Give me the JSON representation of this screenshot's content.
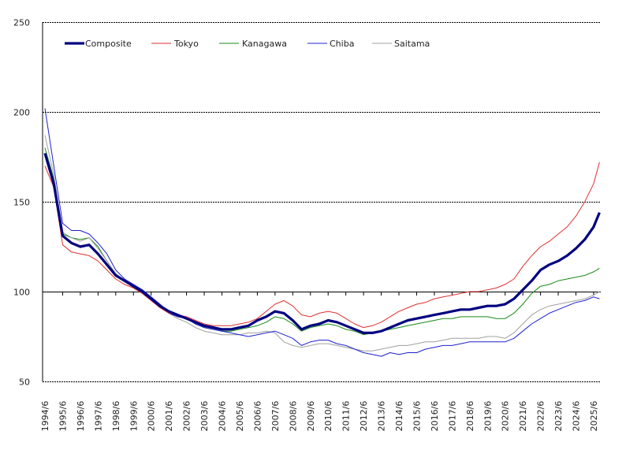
{
  "chart_data": {
    "type": "line",
    "title": "",
    "xlabel": "",
    "ylabel": "",
    "ylim": [
      50,
      250
    ],
    "yticks": [
      50,
      100,
      150,
      200,
      250
    ],
    "grid": "horizontal dashed at 150, 200, 250; solid axis line at 100",
    "legend_position": "top-left",
    "xtick_labels": [
      "1994/6",
      "1995/6",
      "1996/6",
      "1997/6",
      "1998/6",
      "1999/6",
      "2000/6",
      "2001/6",
      "2002/6",
      "2003/6",
      "2004/6",
      "2005/6",
      "2006/6",
      "2007/6",
      "2008/6",
      "2009/6",
      "2010/6",
      "2011/6",
      "2012/6",
      "2013/6",
      "2014/6",
      "2015/6",
      "2016/6",
      "2017/6",
      "2018/6",
      "2019/6",
      "2020/6",
      "2021/6",
      "2022/6",
      "2023/6",
      "2024/6",
      "2025/6"
    ],
    "x": [
      "1994/6",
      "1994/12",
      "1995/6",
      "1995/12",
      "1996/6",
      "1996/12",
      "1997/6",
      "1997/12",
      "1998/6",
      "1998/12",
      "1999/6",
      "1999/12",
      "2000/6",
      "2000/12",
      "2001/6",
      "2001/12",
      "2002/6",
      "2002/12",
      "2003/6",
      "2003/12",
      "2004/6",
      "2004/12",
      "2005/6",
      "2005/12",
      "2006/6",
      "2006/12",
      "2007/6",
      "2007/12",
      "2008/6",
      "2008/12",
      "2009/6",
      "2009/12",
      "2010/6",
      "2010/12",
      "2011/6",
      "2011/12",
      "2012/6",
      "2012/12",
      "2013/6",
      "2013/12",
      "2014/6",
      "2014/12",
      "2015/6",
      "2015/12",
      "2016/6",
      "2016/12",
      "2017/6",
      "2017/12",
      "2018/6",
      "2018/12",
      "2019/6",
      "2019/12",
      "2020/6",
      "2020/12",
      "2021/6",
      "2021/12",
      "2022/6",
      "2022/12",
      "2023/6",
      "2023/12",
      "2024/6",
      "2024/12",
      "2025/6",
      "2025/10"
    ],
    "series": [
      {
        "name": "Composite",
        "color": "#000080",
        "values": [
          177,
          160,
          131,
          127,
          125,
          126,
          121,
          115,
          109,
          106,
          103,
          100,
          96,
          92,
          89,
          87,
          85,
          83,
          81,
          80,
          79,
          79,
          80,
          81,
          84,
          86,
          89,
          88,
          84,
          79,
          81,
          82,
          84,
          83,
          81,
          79,
          77,
          77,
          78,
          80,
          82,
          84,
          85,
          86,
          87,
          88,
          89,
          90,
          90,
          91,
          92,
          92,
          93,
          96,
          101,
          106,
          112,
          115,
          117,
          120,
          124,
          129,
          136,
          144
        ]
      },
      {
        "name": "Tokyo",
        "color": "#e03030",
        "values": [
          170,
          158,
          126,
          122,
          121,
          120,
          117,
          112,
          107,
          104,
          102,
          99,
          95,
          91,
          88,
          87,
          86,
          84,
          82,
          81,
          81,
          81,
          82,
          83,
          85,
          89,
          93,
          95,
          92,
          87,
          86,
          88,
          89,
          88,
          85,
          82,
          80,
          81,
          83,
          86,
          89,
          91,
          93,
          94,
          96,
          97,
          98,
          99,
          100,
          100,
          101,
          102,
          104,
          107,
          114,
          120,
          125,
          128,
          132,
          136,
          142,
          150,
          160,
          172
        ]
      },
      {
        "name": "Kanagawa",
        "color": "#1a8a1a",
        "values": [
          180,
          163,
          132,
          130,
          129,
          130,
          125,
          117,
          110,
          106,
          104,
          101,
          97,
          93,
          89,
          86,
          85,
          82,
          80,
          79,
          78,
          78,
          79,
          80,
          81,
          83,
          86,
          85,
          82,
          78,
          80,
          81,
          82,
          81,
          79,
          78,
          76,
          77,
          78,
          79,
          80,
          81,
          82,
          83,
          84,
          85,
          85,
          86,
          86,
          86,
          86,
          85,
          85,
          88,
          93,
          99,
          103,
          104,
          106,
          107,
          108,
          109,
          111,
          113
        ]
      },
      {
        "name": "Chiba",
        "color": "#2020d0",
        "values": [
          202,
          170,
          138,
          134,
          134,
          132,
          127,
          121,
          112,
          107,
          104,
          101,
          97,
          93,
          88,
          86,
          85,
          82,
          80,
          79,
          78,
          77,
          76,
          75,
          76,
          77,
          78,
          76,
          74,
          70,
          72,
          73,
          73,
          71,
          70,
          68,
          66,
          65,
          64,
          66,
          65,
          66,
          66,
          68,
          69,
          70,
          70,
          71,
          72,
          72,
          72,
          72,
          72,
          74,
          78,
          82,
          85,
          88,
          90,
          92,
          94,
          95,
          97,
          96
        ]
      },
      {
        "name": "Saitama",
        "color": "#a0a0a0",
        "values": [
          187,
          165,
          133,
          130,
          128,
          130,
          124,
          117,
          110,
          106,
          104,
          101,
          97,
          93,
          88,
          85,
          83,
          80,
          78,
          77,
          76,
          76,
          76,
          77,
          77,
          78,
          77,
          72,
          70,
          69,
          70,
          71,
          71,
          70,
          69,
          68,
          67,
          67,
          68,
          69,
          70,
          70,
          71,
          72,
          72,
          73,
          74,
          74,
          74,
          74,
          75,
          75,
          74,
          77,
          82,
          87,
          90,
          92,
          93,
          94,
          95,
          96,
          98,
          100
        ]
      }
    ]
  }
}
